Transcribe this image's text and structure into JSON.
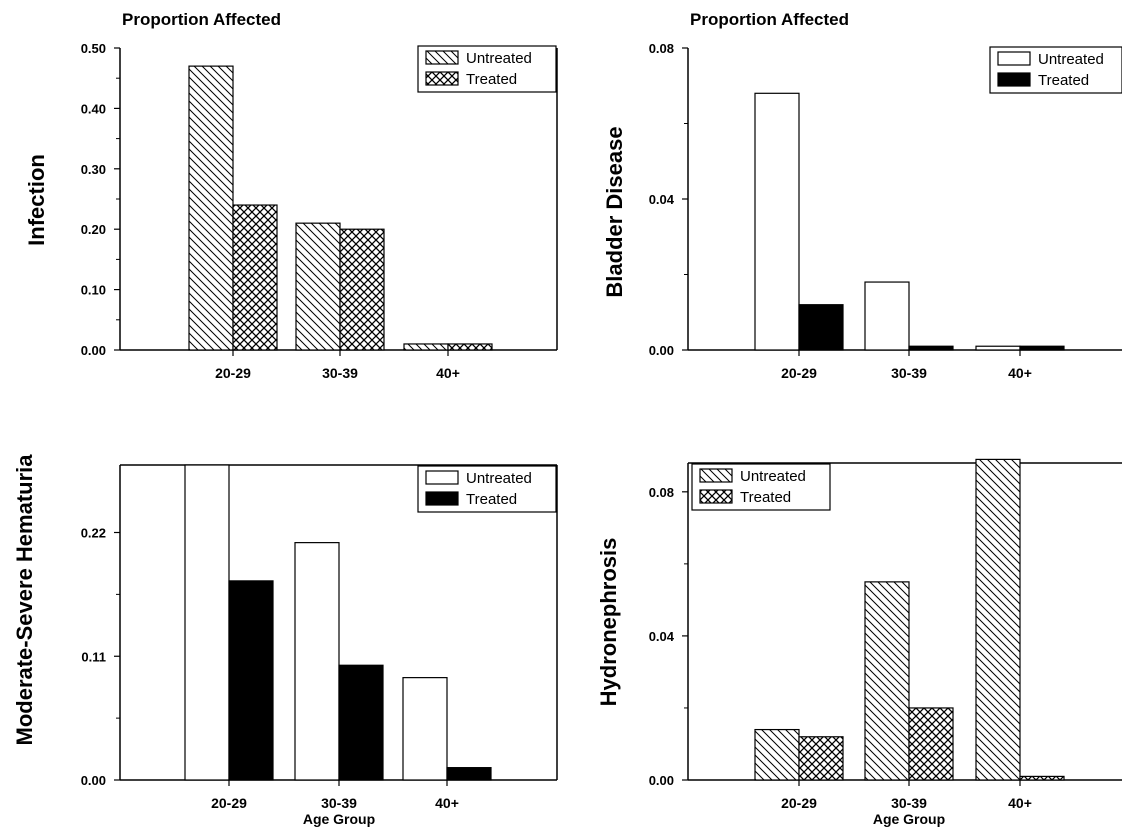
{
  "chart_data": [
    {
      "type": "bar",
      "header": "Proportion Affected",
      "ylabel": "Infection",
      "xlabel": "",
      "categories": [
        "20-29",
        "30-39",
        "40+"
      ],
      "ylim": [
        0,
        0.5
      ],
      "yticks": [
        "0.00",
        "0.10",
        "0.20",
        "0.30",
        "0.40",
        "0.50"
      ],
      "legend_position": "top-right",
      "series": [
        {
          "name": "Untreated",
          "values": [
            0.47,
            0.21,
            0.01
          ],
          "fill": "hatch-diagonal"
        },
        {
          "name": "Treated",
          "values": [
            0.24,
            0.2,
            0.01
          ],
          "fill": "hatch-cross"
        }
      ]
    },
    {
      "type": "bar",
      "header": "Proportion Affected",
      "ylabel": "Bladder Disease",
      "xlabel": "",
      "categories": [
        "20-29",
        "30-39",
        "40+"
      ],
      "ylim": [
        0,
        0.08
      ],
      "yticks": [
        "0.00",
        "0.04",
        "0.08"
      ],
      "legend_position": "top-right",
      "series": [
        {
          "name": "Untreated",
          "values": [
            0.068,
            0.018,
            0.001
          ],
          "fill": "white"
        },
        {
          "name": "Treated",
          "values": [
            0.012,
            0.001,
            0.001
          ],
          "fill": "black"
        }
      ]
    },
    {
      "type": "bar",
      "header": "",
      "ylabel": "Moderate-Severe Hematuria",
      "xlabel": "Age Group",
      "categories": [
        "20-29",
        "30-39",
        "40+"
      ],
      "ylim": [
        0,
        0.28
      ],
      "yticks": [
        "0.00",
        "0.11",
        "0.22"
      ],
      "ytick_values": [
        0,
        0.11,
        0.22
      ],
      "legend_position": "top-right",
      "series": [
        {
          "name": "Untreated",
          "values": [
            0.28,
            0.211,
            0.091
          ],
          "fill": "white"
        },
        {
          "name": "Treated",
          "values": [
            0.177,
            0.102,
            0.011
          ],
          "fill": "black"
        }
      ]
    },
    {
      "type": "bar",
      "header": "",
      "ylabel": "Hydronephrosis",
      "xlabel": "Age Group",
      "categories": [
        "20-29",
        "30-39",
        "40+"
      ],
      "ylim": [
        0,
        0.088
      ],
      "yticks": [
        "0.00",
        "0.04",
        "0.08"
      ],
      "ytick_values": [
        0,
        0.04,
        0.08
      ],
      "legend_position": "top-left",
      "series": [
        {
          "name": "Untreated",
          "values": [
            0.014,
            0.055,
            0.089
          ],
          "fill": "hatch-diagonal"
        },
        {
          "name": "Treated",
          "values": [
            0.012,
            0.02,
            0.001
          ],
          "fill": "hatch-cross"
        }
      ]
    }
  ]
}
